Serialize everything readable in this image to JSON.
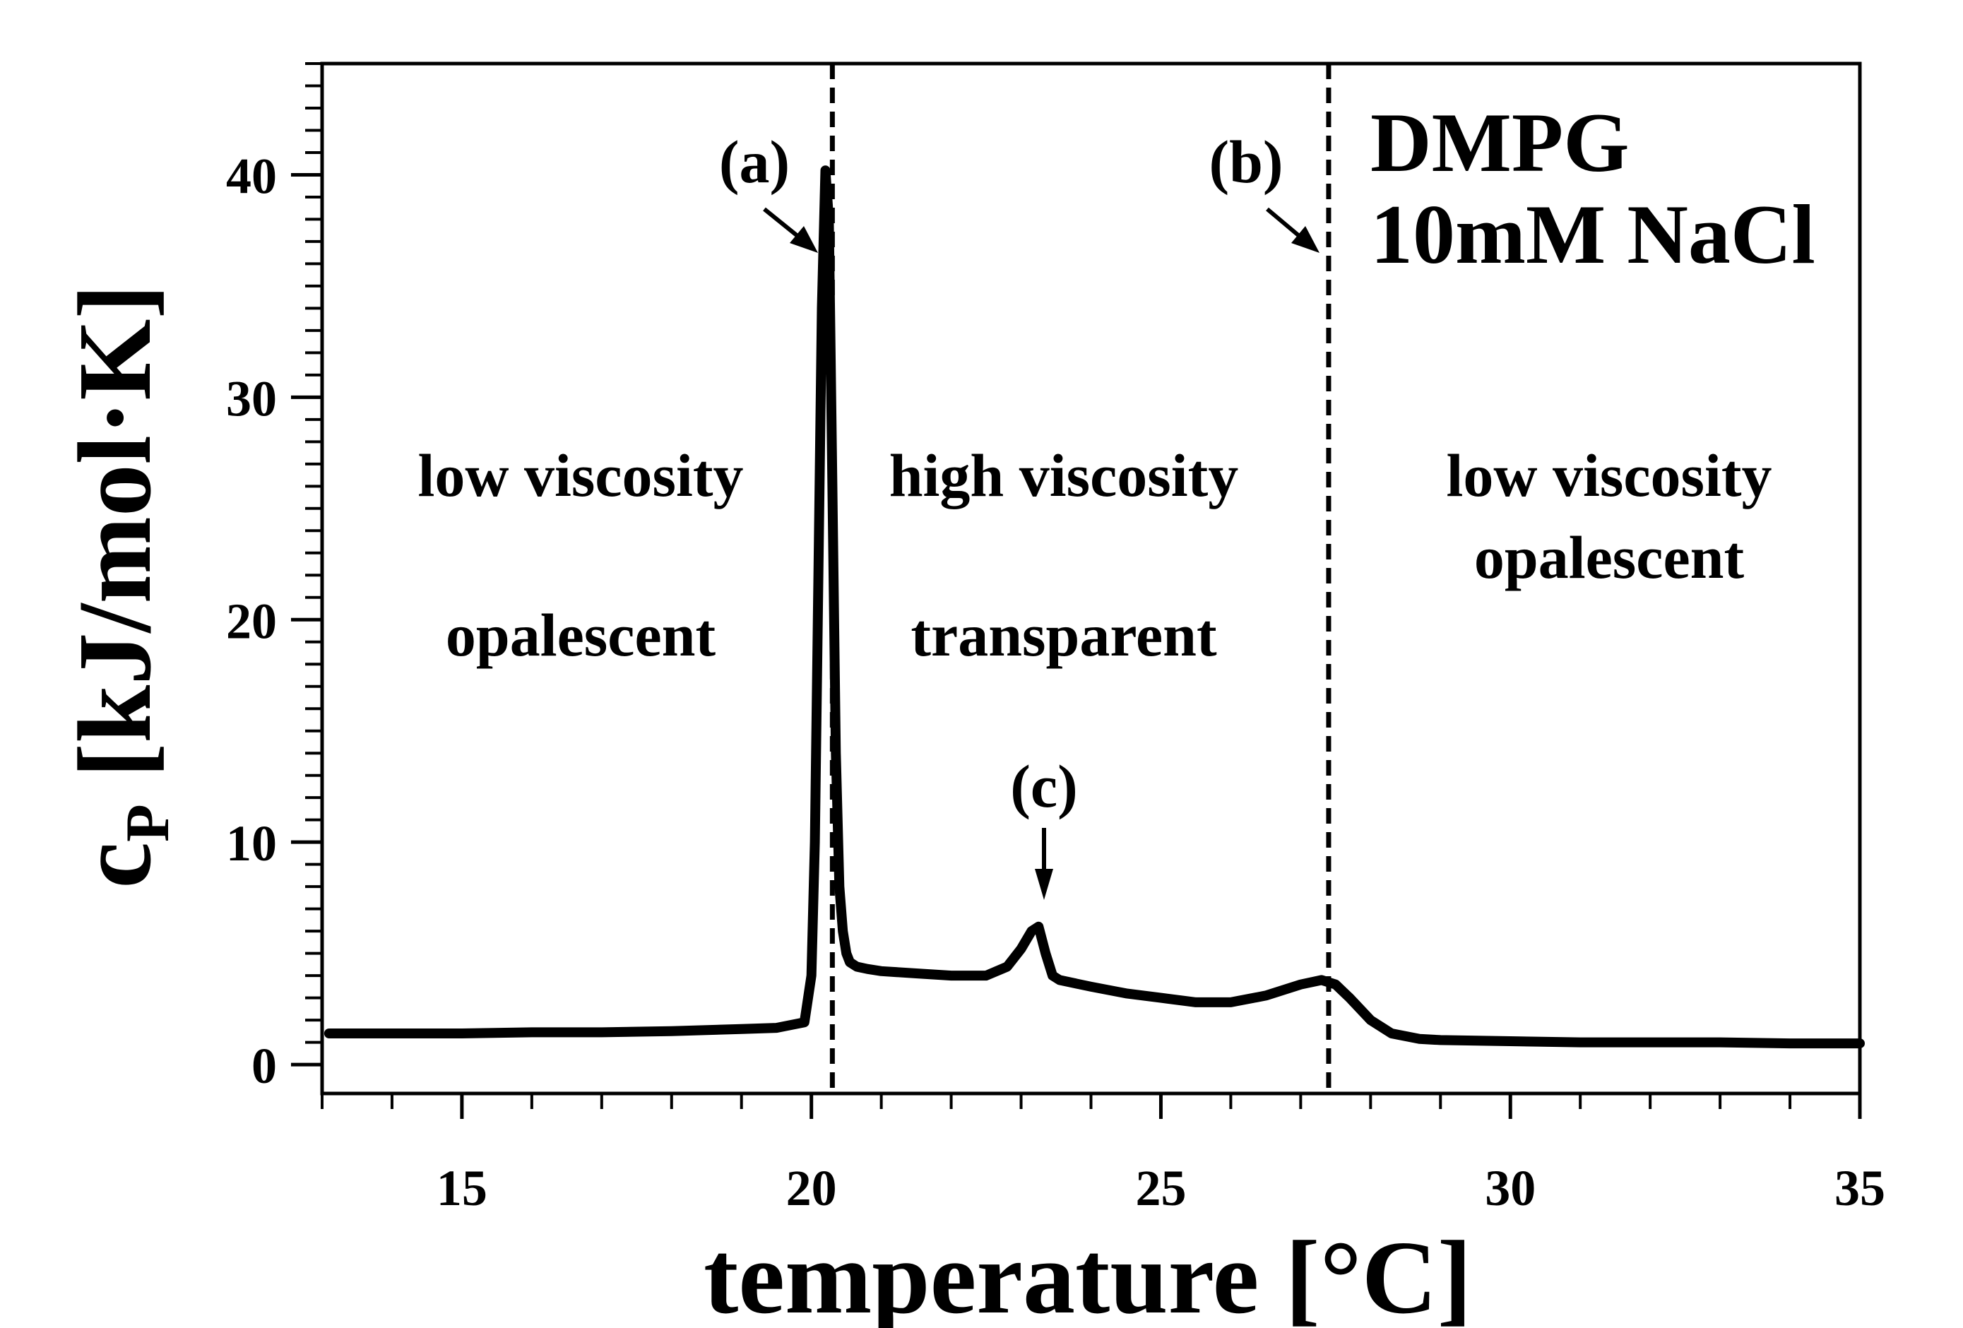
{
  "chart_data": {
    "type": "line",
    "xlabel": "temperature [°C]",
    "ylabel": "c",
    "ylabel_subscript": "P",
    "ylabel_unit": " [kJ/mol·K]",
    "xlim": [
      13,
      35
    ],
    "ylim": [
      -1.3,
      45
    ],
    "x_ticks": [
      15,
      20,
      25,
      30,
      35
    ],
    "y_ticks": [
      0,
      10,
      20,
      30,
      40
    ],
    "x_tick_labels": [
      "15",
      "20",
      "25",
      "30",
      "35"
    ],
    "y_tick_labels": [
      "0",
      "10",
      "20",
      "30",
      "40"
    ],
    "x_minor_step": 1,
    "y_minor_step": 1,
    "grid": false,
    "series": [
      {
        "x": [
          13.1,
          14,
          15,
          16,
          17,
          18,
          19,
          19.5,
          19.9,
          20.0,
          20.05,
          20.1,
          20.15,
          20.2,
          20.25,
          20.3,
          20.35,
          20.4,
          20.45,
          20.5,
          20.55,
          20.65,
          20.8,
          21.0,
          21.5,
          22.0,
          22.5,
          22.8,
          23.0,
          23.15,
          23.25,
          23.35,
          23.45,
          23.55,
          24.0,
          24.5,
          25.0,
          25.5,
          26.0,
          26.5,
          27.0,
          27.3,
          27.5,
          27.7,
          28.0,
          28.3,
          28.7,
          29.0,
          30,
          31,
          32,
          33,
          34,
          35
        ],
        "y": [
          1.4,
          1.4,
          1.4,
          1.45,
          1.45,
          1.5,
          1.6,
          1.65,
          1.9,
          4.0,
          10.0,
          22.0,
          34.0,
          40.2,
          38.0,
          26.0,
          14.0,
          8.0,
          6.0,
          5.0,
          4.6,
          4.4,
          4.3,
          4.2,
          4.1,
          4.0,
          4.0,
          4.4,
          5.2,
          6.0,
          6.2,
          5.0,
          4.0,
          3.8,
          3.5,
          3.2,
          3.0,
          2.8,
          2.8,
          3.1,
          3.6,
          3.8,
          3.6,
          3.0,
          2.0,
          1.4,
          1.15,
          1.1,
          1.05,
          1.0,
          1.0,
          1.0,
          0.95,
          0.95
        ]
      }
    ],
    "vlines": [
      20.3,
      27.4
    ],
    "annotations": {
      "a": {
        "text": "(a)",
        "x": 20.3,
        "y": 37
      },
      "b": {
        "text": "(b)",
        "x": 27.4,
        "y": 37
      },
      "c": {
        "text": "(c)",
        "x": 23.3,
        "y": 7
      }
    },
    "regions": {
      "left": {
        "line1": "low viscosity",
        "line2": "opalescent"
      },
      "middle": {
        "line1": "high viscosity",
        "line2": "transparent"
      },
      "right": {
        "line1": "low viscosity",
        "line2": "opalescent"
      }
    },
    "sample": {
      "line1": "DMPG",
      "line2": "10mM NaCl"
    }
  }
}
